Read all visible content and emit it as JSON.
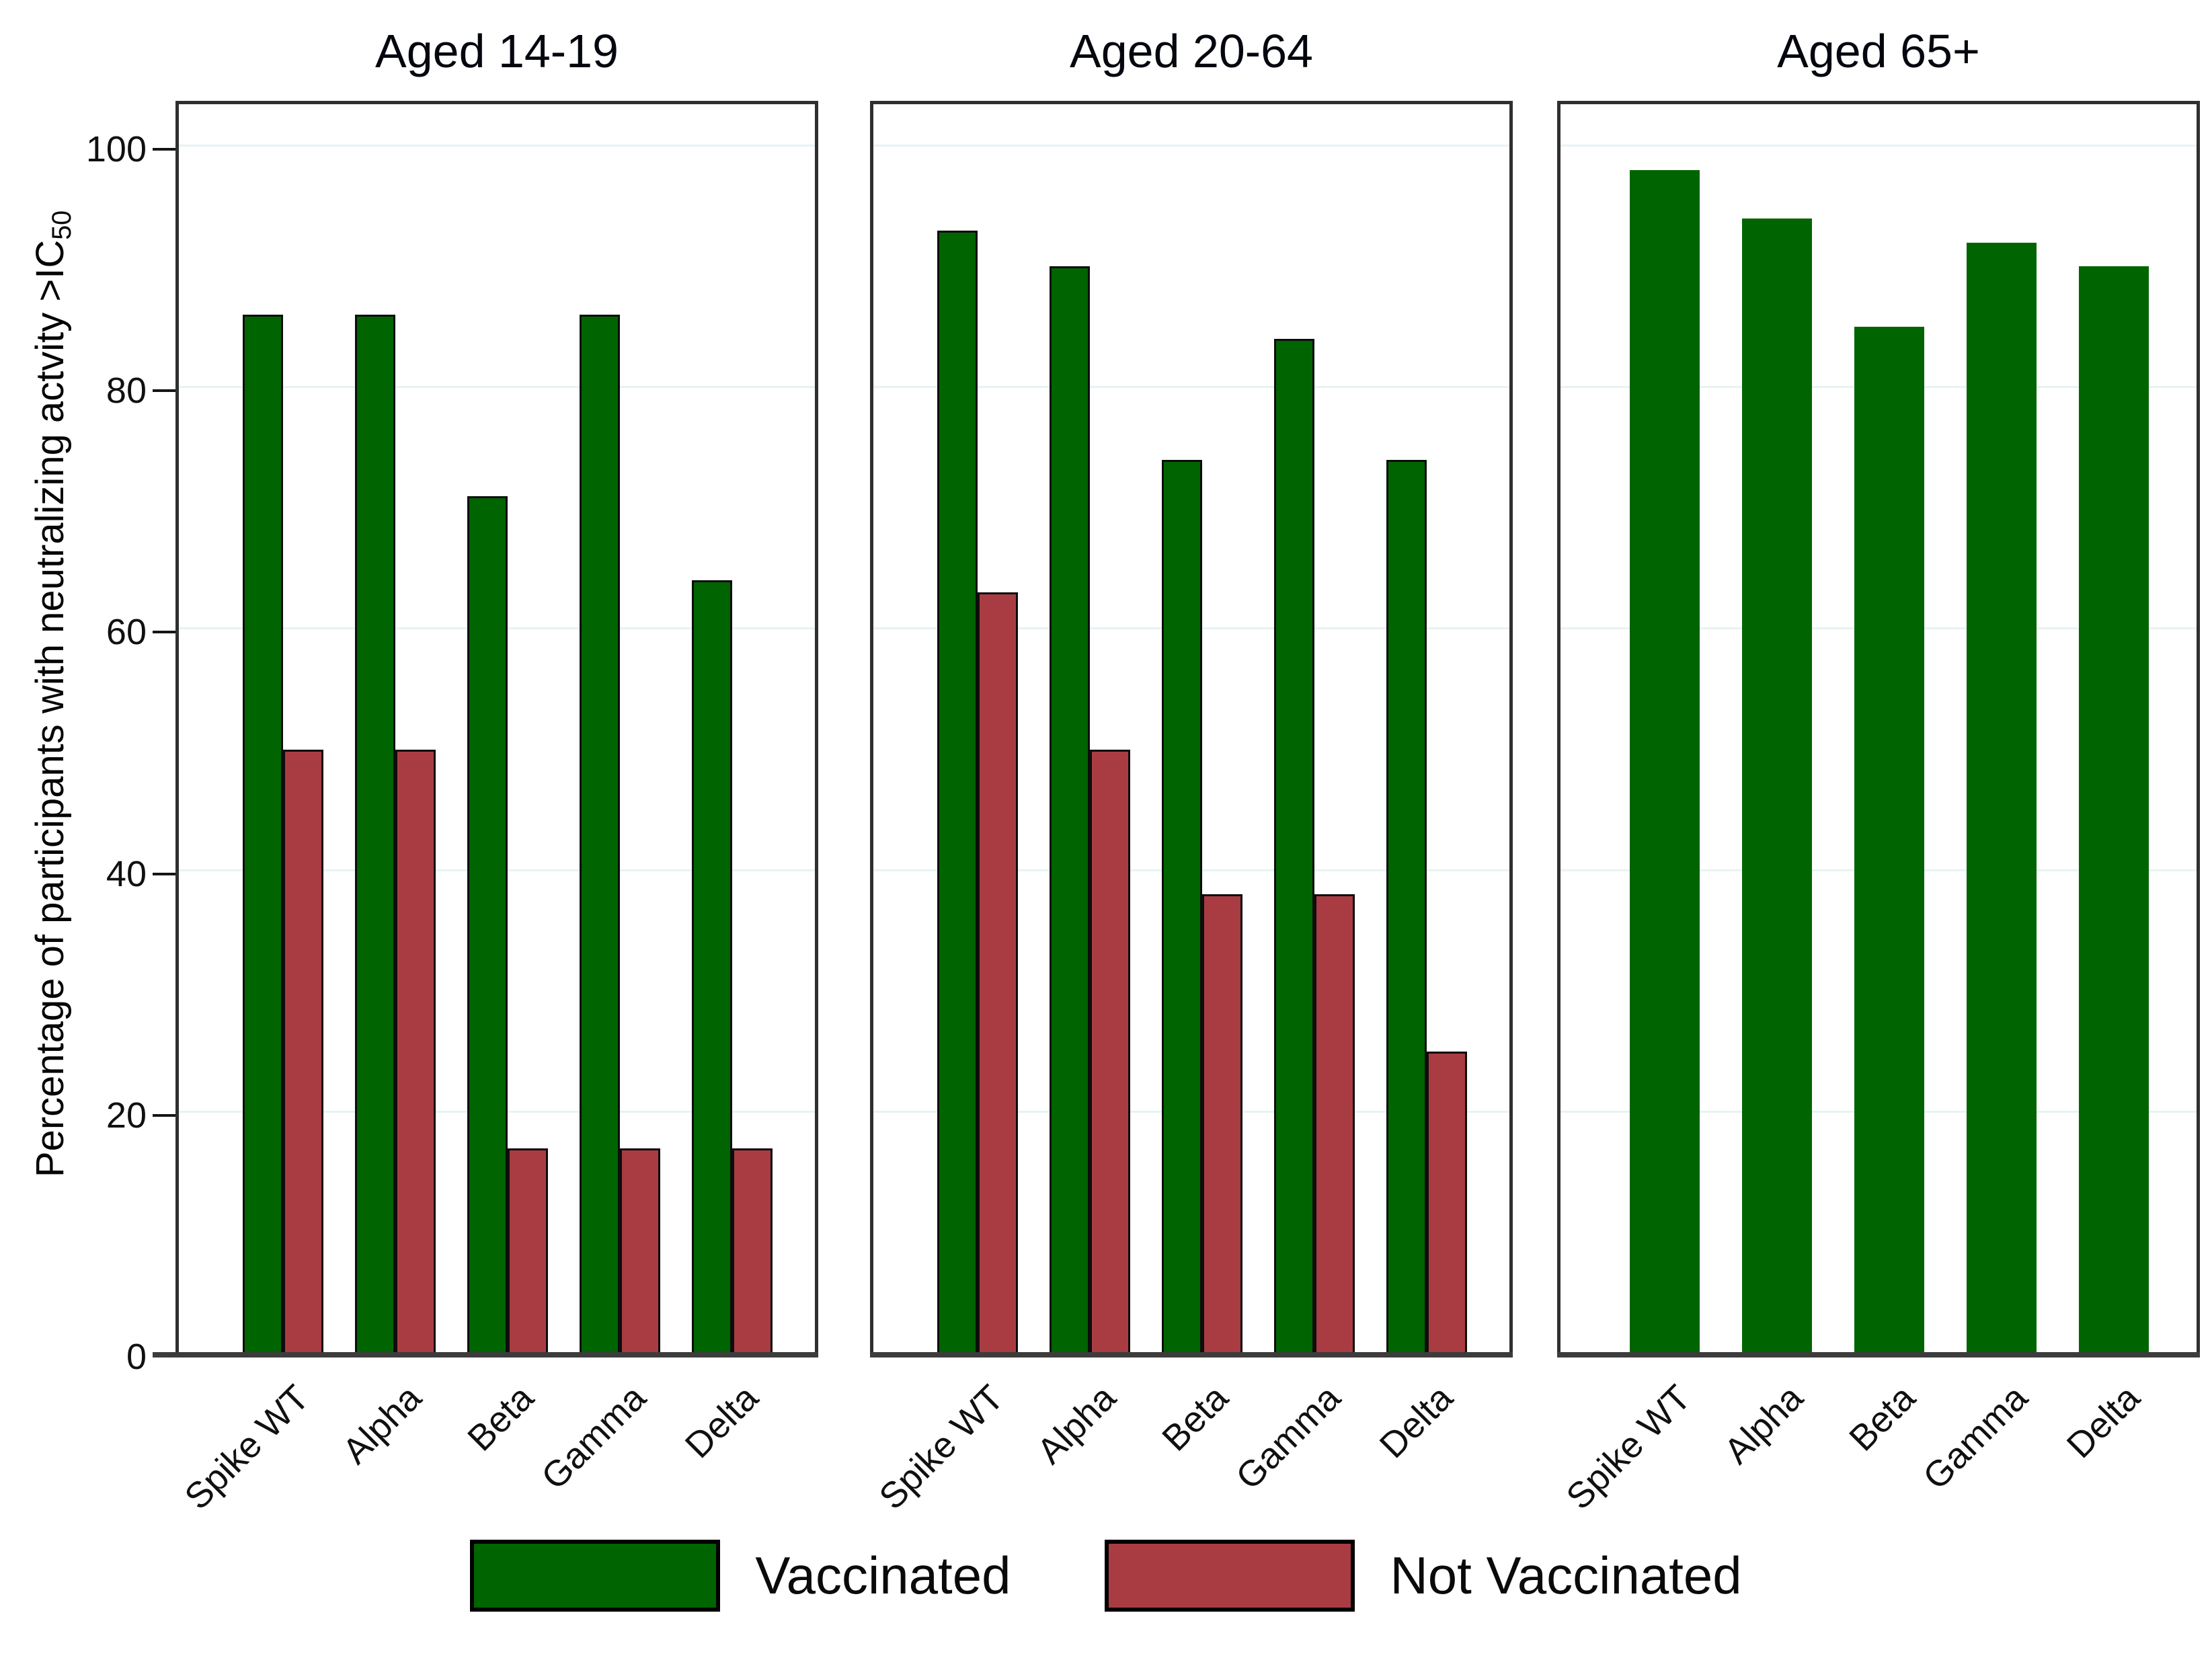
{
  "figure": {
    "background": "#ffffff",
    "ylabel_main": "Percentage of participants with neutralizing actvity >IC",
    "ylabel_sub": "50",
    "legend": [
      {
        "label": "Vaccinated",
        "color": "#006400"
      },
      {
        "label": "Not Vaccinated",
        "color": "#a93c42"
      }
    ]
  },
  "chart_data": {
    "type": "bar",
    "categories": [
      "Spike WT",
      "Alpha",
      "Beta",
      "Gamma",
      "Delta"
    ],
    "panels": [
      {
        "title": "Aged 14-19",
        "series": [
          {
            "name": "Vaccinated",
            "color": "#006400",
            "values": [
              86,
              86,
              71,
              86,
              64
            ]
          },
          {
            "name": "Not Vaccinated",
            "color": "#a93c42",
            "values": [
              50,
              50,
              17,
              17,
              17
            ]
          }
        ]
      },
      {
        "title": "Aged 20-64",
        "series": [
          {
            "name": "Vaccinated",
            "color": "#006400",
            "values": [
              93,
              90,
              74,
              84,
              74
            ]
          },
          {
            "name": "Not Vaccinated",
            "color": "#a93c42",
            "values": [
              63,
              50,
              38,
              38,
              25
            ]
          }
        ]
      },
      {
        "title": "Aged 65+",
        "series": [
          {
            "name": "Vaccinated",
            "color": "#006400",
            "values": [
              98,
              94,
              85,
              92,
              90
            ]
          }
        ]
      }
    ],
    "yticks": [
      0,
      20,
      40,
      60,
      80,
      100
    ],
    "ylim": [
      0,
      104
    ],
    "ylabel": "Percentage of participants with neutralizing actvity >IC50",
    "grid": true,
    "gridline_color": "#e6f3f5",
    "legend_position": "bottom"
  }
}
